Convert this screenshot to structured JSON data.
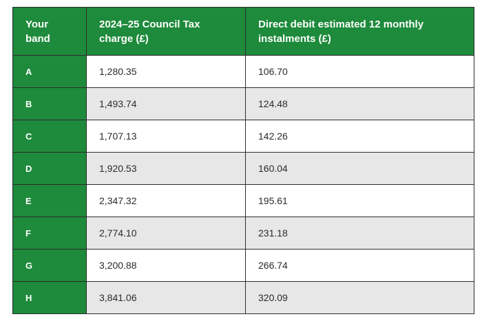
{
  "headers": [
    "Your band",
    "2024–25 Council Tax charge (£)",
    "Direct debit estimated 12 monthly instalments (£)"
  ],
  "rows": [
    {
      "band": "A",
      "charge": "1,280.35",
      "instalment": "106.70"
    },
    {
      "band": "B",
      "charge": "1,493.74",
      "instalment": "124.48"
    },
    {
      "band": "C",
      "charge": "1,707.13",
      "instalment": "142.26"
    },
    {
      "band": "D",
      "charge": "1,920.53",
      "instalment": "160.04"
    },
    {
      "band": "E",
      "charge": "2,347.32",
      "instalment": "195.61"
    },
    {
      "band": "F",
      "charge": "2,774.10",
      "instalment": "231.18"
    },
    {
      "band": "G",
      "charge": "3,200.88",
      "instalment": "266.74"
    },
    {
      "band": "H",
      "charge": "3,841.06",
      "instalment": "320.09"
    }
  ],
  "colors": {
    "header_bg": "#1e8a3b",
    "stripe": "#e7e7e7",
    "border": "#2b2b2b"
  }
}
